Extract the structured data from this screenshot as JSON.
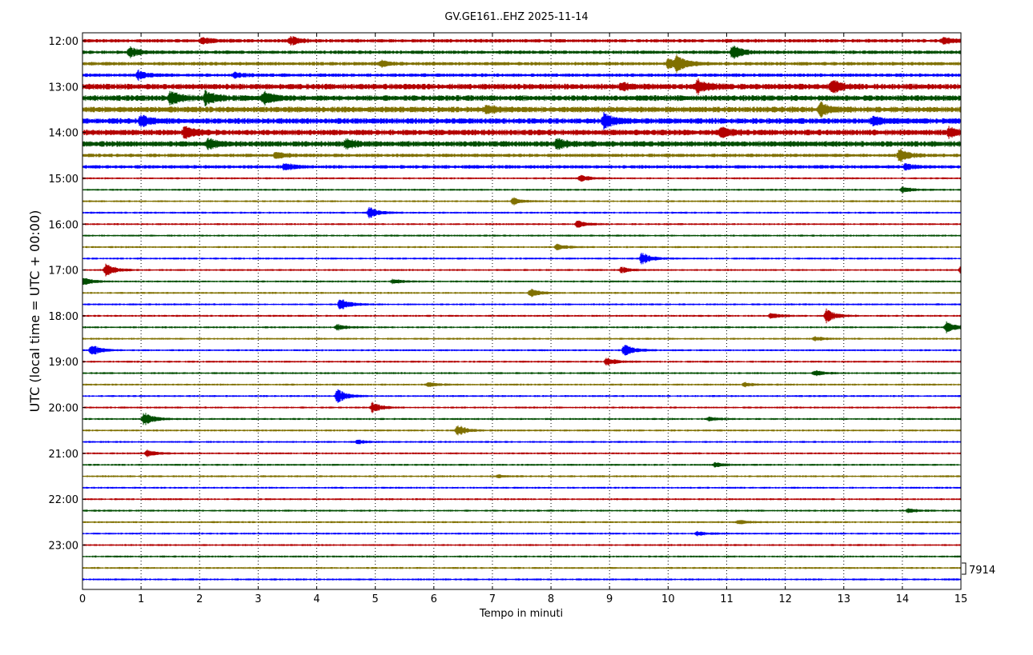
{
  "chart_data": {
    "type": "line",
    "title": "GV.GE161..EHZ 2025-11-14",
    "xlabel": "Tempo in minuti",
    "ylabel": "UTC (local time = UTC + 00:00)",
    "xlim": [
      0,
      15
    ],
    "x_ticks": [
      "0",
      "1",
      "2",
      "3",
      "4",
      "5",
      "6",
      "7",
      "8",
      "9",
      "10",
      "11",
      "12",
      "13",
      "14",
      "15"
    ],
    "hour_labels": [
      "12:00",
      "13:00",
      "14:00",
      "15:00",
      "16:00",
      "17:00",
      "18:00",
      "19:00",
      "20:00",
      "21:00",
      "22:00",
      "23:00"
    ],
    "traces_per_hour": 4,
    "trace_colors": [
      "#b30000",
      "#004d00",
      "#807000",
      "#0000ff"
    ],
    "grid": "vertical dotted at each minute",
    "scale_label": "7914",
    "events": [
      {
        "row": 0,
        "t": 2.05,
        "a": 0.5
      },
      {
        "row": 0,
        "t": 3.55,
        "a": 0.6
      },
      {
        "row": 0,
        "t": 14.7,
        "a": 0.5
      },
      {
        "row": 1,
        "t": 0.8,
        "a": 0.7
      },
      {
        "row": 1,
        "t": 11.1,
        "a": 1.0
      },
      {
        "row": 2,
        "t": 10.0,
        "a": 0.8
      },
      {
        "row": 2,
        "t": 10.15,
        "a": 1.0
      },
      {
        "row": 2,
        "t": 5.1,
        "a": 0.4
      },
      {
        "row": 3,
        "t": 0.95,
        "a": 0.6
      },
      {
        "row": 3,
        "t": 2.6,
        "a": 0.3
      },
      {
        "row": 4,
        "t": 9.2,
        "a": 0.5
      },
      {
        "row": 4,
        "t": 10.5,
        "a": 1.0
      },
      {
        "row": 4,
        "t": 12.8,
        "a": 0.9
      },
      {
        "row": 5,
        "t": 1.5,
        "a": 0.9
      },
      {
        "row": 5,
        "t": 2.1,
        "a": 1.0
      },
      {
        "row": 5,
        "t": 3.1,
        "a": 0.8
      },
      {
        "row": 6,
        "t": 12.6,
        "a": 1.0
      },
      {
        "row": 6,
        "t": 6.9,
        "a": 0.6
      },
      {
        "row": 7,
        "t": 1.0,
        "a": 0.7
      },
      {
        "row": 7,
        "t": 8.9,
        "a": 1.0
      },
      {
        "row": 7,
        "t": 13.5,
        "a": 0.6
      },
      {
        "row": 8,
        "t": 1.75,
        "a": 0.9
      },
      {
        "row": 8,
        "t": 10.9,
        "a": 0.8
      },
      {
        "row": 8,
        "t": 14.8,
        "a": 0.6
      },
      {
        "row": 9,
        "t": 2.15,
        "a": 0.6
      },
      {
        "row": 9,
        "t": 4.5,
        "a": 0.6
      },
      {
        "row": 9,
        "t": 8.1,
        "a": 0.7
      },
      {
        "row": 10,
        "t": 3.3,
        "a": 0.5
      },
      {
        "row": 10,
        "t": 13.95,
        "a": 0.9
      },
      {
        "row": 11,
        "t": 3.45,
        "a": 0.5
      },
      {
        "row": 11,
        "t": 14.05,
        "a": 0.4
      },
      {
        "row": 12,
        "t": 8.5,
        "a": 0.5
      },
      {
        "row": 13,
        "t": 14.0,
        "a": 0.4
      },
      {
        "row": 14,
        "t": 7.35,
        "a": 0.5
      },
      {
        "row": 15,
        "t": 4.9,
        "a": 0.8
      },
      {
        "row": 16,
        "t": 8.45,
        "a": 0.5
      },
      {
        "row": 18,
        "t": 8.1,
        "a": 0.4
      },
      {
        "row": 19,
        "t": 9.55,
        "a": 0.9
      },
      {
        "row": 20,
        "t": 0.4,
        "a": 0.9
      },
      {
        "row": 20,
        "t": 9.2,
        "a": 0.4
      },
      {
        "row": 20,
        "t": 15.0,
        "a": 0.6
      },
      {
        "row": 21,
        "t": 0.0,
        "a": 0.6
      },
      {
        "row": 21,
        "t": 5.3,
        "a": 0.3
      },
      {
        "row": 22,
        "t": 7.65,
        "a": 0.6
      },
      {
        "row": 23,
        "t": 4.4,
        "a": 0.9
      },
      {
        "row": 24,
        "t": 11.75,
        "a": 0.4
      },
      {
        "row": 24,
        "t": 12.7,
        "a": 1.0
      },
      {
        "row": 25,
        "t": 4.35,
        "a": 0.4
      },
      {
        "row": 25,
        "t": 14.75,
        "a": 0.8
      },
      {
        "row": 26,
        "t": 12.5,
        "a": 0.3
      },
      {
        "row": 27,
        "t": 0.15,
        "a": 0.8
      },
      {
        "row": 27,
        "t": 9.25,
        "a": 0.9
      },
      {
        "row": 28,
        "t": 8.95,
        "a": 0.6
      },
      {
        "row": 29,
        "t": 12.5,
        "a": 0.4
      },
      {
        "row": 30,
        "t": 5.9,
        "a": 0.3
      },
      {
        "row": 30,
        "t": 11.3,
        "a": 0.3
      },
      {
        "row": 31,
        "t": 4.35,
        "a": 1.0
      },
      {
        "row": 32,
        "t": 4.95,
        "a": 0.7
      },
      {
        "row": 33,
        "t": 1.05,
        "a": 1.0
      },
      {
        "row": 33,
        "t": 10.7,
        "a": 0.3
      },
      {
        "row": 34,
        "t": 6.4,
        "a": 0.8
      },
      {
        "row": 35,
        "t": 4.7,
        "a": 0.3
      },
      {
        "row": 36,
        "t": 1.1,
        "a": 0.5
      },
      {
        "row": 37,
        "t": 10.8,
        "a": 0.3
      },
      {
        "row": 38,
        "t": 7.1,
        "a": 0.2
      },
      {
        "row": 41,
        "t": 14.1,
        "a": 0.3
      },
      {
        "row": 42,
        "t": 11.2,
        "a": 0.3
      },
      {
        "row": 43,
        "t": 10.5,
        "a": 0.3
      }
    ]
  }
}
